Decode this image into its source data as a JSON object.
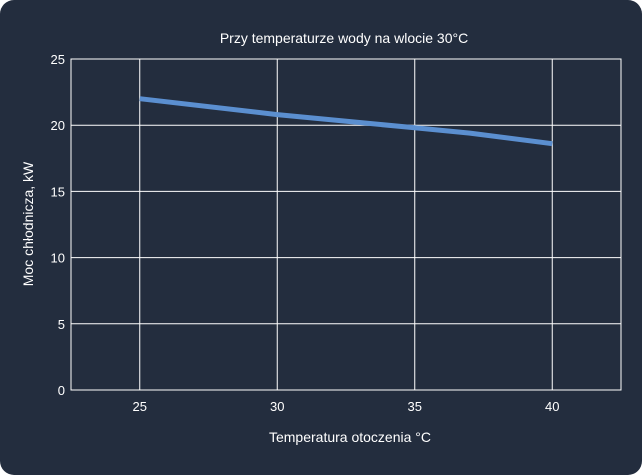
{
  "chart_data": {
    "type": "line",
    "title": "Przy temperaturze wody na wlocie 30°C",
    "xlabel": "Temperatura otoczenia °C",
    "ylabel": "Moc chłodnicza, kW",
    "xlim": [
      22.5,
      42.5
    ],
    "ylim": [
      0,
      25
    ],
    "xticks": [
      25,
      30,
      35,
      40
    ],
    "yticks": [
      0,
      5,
      10,
      15,
      20,
      25
    ],
    "grid": true,
    "series": [
      {
        "x": [
          25,
          30,
          35,
          37,
          40
        ],
        "values": [
          22,
          20.8,
          19.8,
          19.4,
          18.6
        ],
        "color": "#5b8fd0"
      }
    ]
  }
}
